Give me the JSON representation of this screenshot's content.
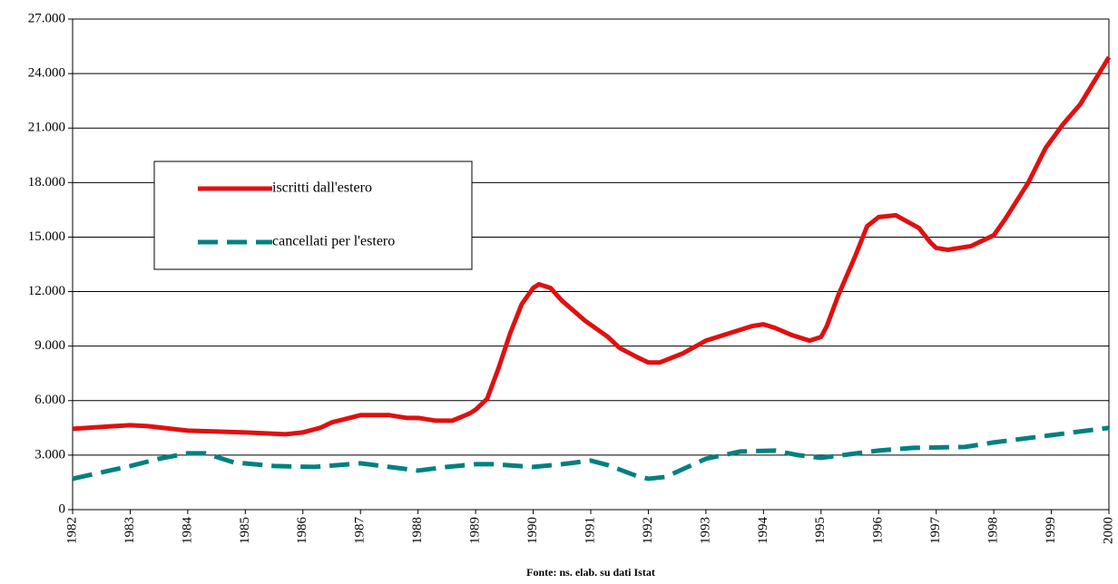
{
  "chart_data": {
    "type": "line",
    "footer": "Fonte: ns. elab. su dati Istat",
    "xlim": [
      1982,
      2000
    ],
    "xticks": [
      1982,
      1983,
      1984,
      1985,
      1986,
      1987,
      1988,
      1989,
      1990,
      1991,
      1992,
      1993,
      1994,
      1995,
      1996,
      1997,
      1998,
      1999,
      2000
    ],
    "ylim": [
      0,
      27000
    ],
    "yticks": [
      0,
      {
        "value": 3000,
        "label": "3.000"
      },
      {
        "value": 6000,
        "label": "6.000"
      },
      {
        "value": 9000,
        "label": "9.000"
      },
      {
        "value": 12000,
        "label": "12.000"
      },
      {
        "value": 15000,
        "label": "15.000"
      },
      {
        "value": 18000,
        "label": "18.000"
      },
      {
        "value": 21000,
        "label": "21.000"
      },
      {
        "value": 24000,
        "label": "24.000"
      },
      {
        "value": 27000,
        "label": "27.000"
      }
    ],
    "grid": true,
    "series": [
      {
        "name": "iscritti dall'estero",
        "color": "#e01010",
        "dashed": false,
        "x": [
          1982,
          1983,
          1983.3,
          1984,
          1985,
          1985.7,
          1986,
          1986.3,
          1986.5,
          1987,
          1987.5,
          1987.8,
          1988,
          1988.3,
          1988.6,
          1988.9,
          1989,
          1989.2,
          1989.4,
          1989.6,
          1989.8,
          1990,
          1990.1,
          1990.3,
          1990.5,
          1990.9,
          1991.3,
          1991.5,
          1991.8,
          1992,
          1992.2,
          1992.6,
          1993,
          1993.5,
          1993.8,
          1994,
          1994.2,
          1994.5,
          1994.8,
          1995,
          1995.1,
          1995.3,
          1995.6,
          1995.8,
          1996,
          1996.3,
          1996.7,
          1996.9,
          1997,
          1997.2,
          1997.6,
          1998,
          1998.2,
          1998.6,
          1998.9,
          1999.2,
          1999.5,
          2000
        ],
        "values": [
          4450,
          4650,
          4600,
          4350,
          4250,
          4150,
          4250,
          4500,
          4800,
          5200,
          5200,
          5050,
          5050,
          4900,
          4900,
          5300,
          5500,
          6100,
          7800,
          9700,
          11300,
          12200,
          12400,
          12200,
          11500,
          10400,
          9500,
          8900,
          8400,
          8100,
          8100,
          8600,
          9300,
          9800,
          10100,
          10200,
          10000,
          9600,
          9300,
          9500,
          10100,
          11800,
          14000,
          15600,
          16100,
          16200,
          15500,
          14700,
          14400,
          14300,
          14500,
          15100,
          16000,
          18000,
          19900,
          21200,
          22300,
          24900
        ]
      },
      {
        "name": "cancellati per l'estero",
        "color": "#008080",
        "dashed": true,
        "x": [
          1982,
          1983,
          1983.5,
          1984,
          1984.3,
          1984.8,
          1985.5,
          1986.2,
          1987,
          1987.5,
          1988,
          1988.5,
          1989,
          1989.3,
          1990,
          1990.5,
          1991,
          1991.3,
          1991.8,
          1992,
          1992.3,
          1993,
          1993.6,
          1994.2,
          1994.6,
          1995,
          1995.5,
          1996,
          1996.6,
          1997.5,
          1998,
          1999,
          2000
        ],
        "values": [
          1700,
          2400,
          2800,
          3100,
          3100,
          2600,
          2400,
          2350,
          2550,
          2350,
          2150,
          2350,
          2500,
          2500,
          2350,
          2500,
          2700,
          2450,
          1850,
          1700,
          1800,
          2800,
          3200,
          3250,
          3000,
          2850,
          3050,
          3250,
          3400,
          3450,
          3700,
          4100,
          4500
        ]
      }
    ]
  }
}
